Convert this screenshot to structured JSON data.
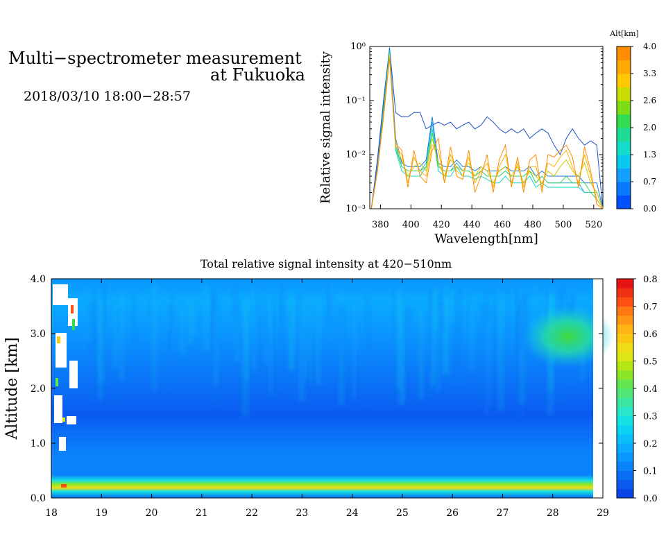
{
  "header": {
    "title_line1": "Multi−spectrometer measurement",
    "title_line2": "at Fukuoka",
    "date_range": "2018/03/10 18:00−28:57"
  },
  "chart_data": [
    {
      "type": "line",
      "xlabel": "Wavelength[nm]",
      "ylabel": "Relative signal intensity",
      "xlim": [
        373,
        526
      ],
      "ylim": [
        0.001,
        1
      ],
      "yscale": "log",
      "xticks": [
        380,
        400,
        420,
        440,
        460,
        480,
        500,
        520
      ],
      "ytick_labels": [
        "10⁻³",
        "10⁻²",
        "10⁻¹",
        "10⁰"
      ],
      "colorbar": {
        "title": "Alt[km]",
        "ticks": [
          "0.0",
          "0.7",
          "1.3",
          "2.0",
          "2.6",
          "3.3",
          "4.0"
        ],
        "colors": [
          "#0050ff",
          "#0a78ff",
          "#14a0ff",
          "#0ac8f0",
          "#14dcc8",
          "#1edc96",
          "#32dc50",
          "#7ddc14",
          "#c8dc00",
          "#ffc800",
          "#ffaa00",
          "#ff8c00"
        ]
      },
      "x": [
        374,
        378,
        382,
        386,
        390,
        394,
        398,
        402,
        406,
        410,
        414,
        418,
        422,
        426,
        430,
        434,
        438,
        442,
        446,
        450,
        454,
        458,
        462,
        466,
        470,
        474,
        478,
        482,
        486,
        490,
        494,
        498,
        502,
        506,
        510,
        514,
        518,
        522,
        526
      ],
      "series": [
        {
          "color": "#1f4fc4",
          "values": [
            0.001,
            0.008,
            0.1,
            0.95,
            0.06,
            0.05,
            0.05,
            0.06,
            0.06,
            0.03,
            0.035,
            0.04,
            0.035,
            0.04,
            0.03,
            0.035,
            0.04,
            0.03,
            0.035,
            0.05,
            0.04,
            0.03,
            0.025,
            0.03,
            0.025,
            0.03,
            0.02,
            0.025,
            0.03,
            0.025,
            0.015,
            0.01,
            0.02,
            0.03,
            0.02,
            0.015,
            0.018,
            0.015,
            0.001
          ]
        },
        {
          "color": "#1a7ad8",
          "values": [
            0.001,
            0.006,
            0.08,
            0.9,
            0.02,
            0.007,
            0.006,
            0.006,
            0.006,
            0.008,
            0.05,
            0.007,
            0.006,
            0.006,
            0.008,
            0.006,
            0.006,
            0.005,
            0.006,
            0.005,
            0.005,
            0.005,
            0.006,
            0.005,
            0.005,
            0.005,
            0.006,
            0.004,
            0.005,
            0.004,
            0.004,
            0.004,
            0.004,
            0.004,
            0.004,
            0.003,
            0.003,
            0.003,
            0.001
          ]
        },
        {
          "color": "#26a6e6",
          "values": [
            0.001,
            0.005,
            0.07,
            0.85,
            0.015,
            0.006,
            0.005,
            0.005,
            0.005,
            0.007,
            0.04,
            0.006,
            0.005,
            0.005,
            0.007,
            0.005,
            0.005,
            0.004,
            0.005,
            0.004,
            0.004,
            0.004,
            0.005,
            0.004,
            0.004,
            0.004,
            0.005,
            0.003,
            0.004,
            0.003,
            0.003,
            0.003,
            0.003,
            0.003,
            0.003,
            0.002,
            0.002,
            0.002,
            0.001
          ]
        },
        {
          "color": "#14d8c0",
          "values": [
            0.001,
            0.005,
            0.06,
            0.8,
            0.012,
            0.005,
            0.004,
            0.004,
            0.004,
            0.006,
            0.03,
            0.005,
            0.004,
            0.004,
            0.006,
            0.004,
            0.004,
            0.0035,
            0.004,
            0.0035,
            0.003,
            0.003,
            0.004,
            0.003,
            0.003,
            0.003,
            0.004,
            0.0025,
            0.003,
            0.0025,
            0.0025,
            0.0025,
            0.0025,
            0.0025,
            0.0025,
            0.002,
            0.002,
            0.0015,
            0.001
          ]
        },
        {
          "color": "#40d860",
          "values": [
            0.001,
            0.005,
            0.06,
            0.75,
            0.013,
            0.006,
            0.005,
            0.005,
            0.005,
            0.006,
            0.025,
            0.006,
            0.005,
            0.005,
            0.006,
            0.005,
            0.005,
            0.004,
            0.005,
            0.004,
            0.004,
            0.004,
            0.005,
            0.004,
            0.004,
            0.004,
            0.005,
            0.003,
            0.004,
            0.003,
            0.003,
            0.003,
            0.004,
            0.003,
            0.003,
            0.003,
            0.002,
            0.002,
            0.001
          ]
        },
        {
          "color": "#c8c800",
          "values": [
            0.001,
            0.005,
            0.05,
            0.7,
            0.015,
            0.008,
            0.004,
            0.006,
            0.007,
            0.005,
            0.02,
            0.007,
            0.004,
            0.008,
            0.006,
            0.005,
            0.007,
            0.004,
            0.006,
            0.005,
            0.003,
            0.005,
            0.006,
            0.004,
            0.006,
            0.003,
            0.005,
            0.004,
            0.003,
            0.005,
            0.004,
            0.006,
            0.008,
            0.005,
            0.004,
            0.007,
            0.003,
            0.002,
            0.001
          ]
        },
        {
          "color": "#ffb000",
          "values": [
            0.001,
            0.005,
            0.05,
            0.65,
            0.014,
            0.01,
            0.003,
            0.009,
            0.005,
            0.004,
            0.015,
            0.012,
            0.003,
            0.01,
            0.005,
            0.004,
            0.009,
            0.003,
            0.005,
            0.007,
            0.0025,
            0.006,
            0.01,
            0.003,
            0.007,
            0.0025,
            0.006,
            0.006,
            0.0025,
            0.007,
            0.006,
            0.009,
            0.012,
            0.006,
            0.003,
            0.01,
            0.004,
            0.0015,
            0.001
          ]
        },
        {
          "color": "#ff8c00",
          "values": [
            0.001,
            0.005,
            0.05,
            0.6,
            0.016,
            0.012,
            0.0025,
            0.012,
            0.004,
            0.003,
            0.012,
            0.02,
            0.003,
            0.014,
            0.004,
            0.0035,
            0.012,
            0.002,
            0.004,
            0.01,
            0.002,
            0.008,
            0.015,
            0.0025,
            0.009,
            0.002,
            0.008,
            0.01,
            0.002,
            0.01,
            0.009,
            0.012,
            0.015,
            0.009,
            0.0025,
            0.014,
            0.005,
            0.0012,
            0.001
          ]
        }
      ]
    },
    {
      "type": "heatmap",
      "title": "Total relative signal intensity at 420−510nm",
      "ylabel": "Altitude [km]",
      "xlim": [
        18,
        29
      ],
      "ylim": [
        0,
        4
      ],
      "xticks": [
        "18",
        "19",
        "20",
        "21",
        "22",
        "23",
        "24",
        "25",
        "26",
        "27",
        "28",
        "29"
      ],
      "yticks": [
        "0.0",
        "1.0",
        "2.0",
        "3.0",
        "4.0"
      ],
      "data_range": [
        0,
        0.8
      ],
      "colorbar": {
        "ticks": [
          "0.0",
          "0.1",
          "0.2",
          "0.3",
          "0.4",
          "0.5",
          "0.6",
          "0.7",
          "0.8"
        ],
        "colors": [
          "#0a46e6",
          "#0a5af0",
          "#0a6ef5",
          "#0a82fa",
          "#0a96ff",
          "#0aaaff",
          "#0abefa",
          "#0ad2f0",
          "#14e1e1",
          "#28e6c8",
          "#3ce6a0",
          "#50e678",
          "#64e650",
          "#8ce628",
          "#b4e614",
          "#dce614",
          "#f0dc14",
          "#fac814",
          "#ffb414",
          "#ff9614",
          "#ff7814",
          "#ff5014",
          "#f03214",
          "#e61414"
        ]
      },
      "profile": [
        {
          "alt": 0.0,
          "value": 0.09
        },
        {
          "alt": 0.12,
          "value": 0.3
        },
        {
          "alt": 0.18,
          "value": 0.55
        },
        {
          "alt": 0.25,
          "value": 0.45
        },
        {
          "alt": 0.32,
          "value": 0.28
        },
        {
          "alt": 0.42,
          "value": 0.13
        },
        {
          "alt": 0.8,
          "value": 0.1
        },
        {
          "alt": 1.2,
          "value": 0.075
        },
        {
          "alt": 1.5,
          "value": 0.065
        },
        {
          "alt": 2.0,
          "value": 0.085
        },
        {
          "alt": 2.5,
          "value": 0.12
        },
        {
          "alt": 3.0,
          "value": 0.15
        },
        {
          "alt": 3.6,
          "value": 0.17
        },
        {
          "alt": 4.0,
          "value": 0.15
        }
      ],
      "features": [
        {
          "label": "cloud patch",
          "t": [
            27.8,
            28.8
          ],
          "alt": [
            2.6,
            3.3
          ],
          "value": 0.35
        }
      ]
    }
  ]
}
